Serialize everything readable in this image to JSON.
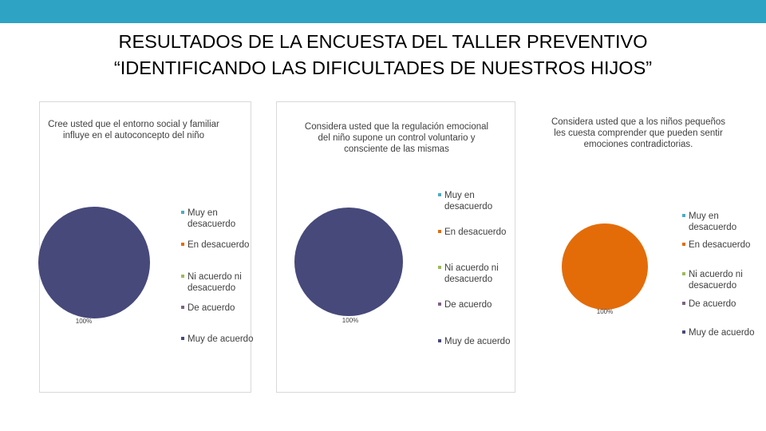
{
  "header": {
    "title_line1": "RESULTADOS DE LA ENCUESTA DEL TALLER PREVENTIVO",
    "title_line2": "“IDENTIFICANDO LAS DIFICULTADES DE NUESTROS HIJOS”",
    "bar_color": "#2ea3c3"
  },
  "chart_data": [
    {
      "type": "pie",
      "title": "Cree usted que el entorno social y familiar influye en el autoconcepto del niño",
      "categories": [
        "Muy en desacuerdo",
        "En desacuerdo",
        "Ni acuerdo ni desacuerdo",
        "De acuerdo",
        "Muy de acuerdo"
      ],
      "values": [
        0,
        0,
        0,
        0,
        100
      ],
      "data_labels": [
        "",
        "",
        "",
        "",
        "100%"
      ],
      "colors": [
        "#4bacc6",
        "#e36c09",
        "#9bbb59",
        "#7f6084",
        "#46497a"
      ],
      "legend_position": "right"
    },
    {
      "type": "pie",
      "title": "Considera usted que la regulación emocional del niño supone un control voluntario y consciente de las mismas",
      "categories": [
        "Muy en desacuerdo",
        "En desacuerdo",
        "Ni acuerdo ni desacuerdo",
        "De acuerdo",
        "Muy de acuerdo"
      ],
      "values": [
        0,
        0,
        0,
        0,
        100
      ],
      "data_labels": [
        "",
        "",
        "",
        "",
        "100%"
      ],
      "colors": [
        "#4bacc6",
        "#e36c09",
        "#9bbb59",
        "#7f6084",
        "#46497a"
      ],
      "legend_position": "right"
    },
    {
      "type": "pie",
      "title": "Considera usted que a los niños pequeños les cuesta comprender que pueden sentir emociones contradictorias.",
      "categories": [
        "Muy en desacuerdo",
        "En desacuerdo",
        "Ni acuerdo ni desacuerdo",
        "De acuerdo",
        "Muy de acuerdo"
      ],
      "values": [
        0,
        100,
        0,
        0,
        0
      ],
      "data_labels": [
        "",
        "100%",
        "",
        "",
        ""
      ],
      "colors": [
        "#4bacc6",
        "#e36c09",
        "#9bbb59",
        "#7f6084",
        "#46497a"
      ],
      "legend_position": "right"
    }
  ]
}
